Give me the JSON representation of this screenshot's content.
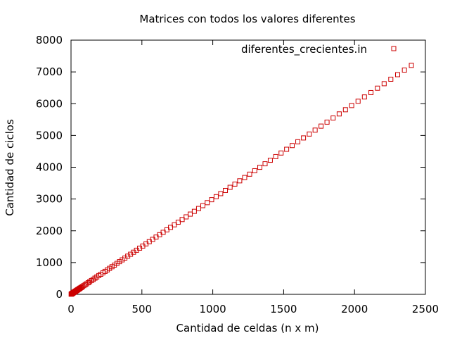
{
  "chart_data": {
    "type": "scatter",
    "title": "Matrices con todos los valores diferentes",
    "xlabel": "Cantidad de celdas (n x m)",
    "ylabel": "Cantidad de ciclos",
    "xlim": [
      0,
      2500
    ],
    "ylim": [
      0,
      8000
    ],
    "xticks": [
      "0",
      "500",
      "1000",
      "1500",
      "2000",
      "2500"
    ],
    "yticks": [
      "0",
      "1000",
      "2000",
      "3000",
      "4000",
      "5000",
      "6000",
      "7000",
      "8000"
    ],
    "grid": false,
    "legend_position": "top-right",
    "marker": "open-square",
    "color": "#cc0000",
    "series": [
      {
        "name": "diferentes_crecientes.in",
        "x": [
          1,
          2,
          3,
          4,
          5,
          6,
          7,
          8,
          9,
          10,
          11,
          12,
          13,
          14,
          15,
          16,
          18,
          20,
          22,
          24,
          25,
          28,
          30,
          32,
          35,
          36,
          40,
          42,
          45,
          48,
          49,
          54,
          56,
          60,
          63,
          64,
          70,
          72,
          80,
          81,
          90,
          100,
          110,
          121,
          132,
          144,
          156,
          169,
          182,
          196,
          210,
          225,
          240,
          256,
          272,
          289,
          306,
          324,
          342,
          361,
          380,
          400,
          420,
          441,
          462,
          484,
          506,
          529,
          552,
          576,
          600,
          625,
          650,
          676,
          702,
          729,
          756,
          784,
          812,
          841,
          870,
          900,
          930,
          961,
          992,
          1024,
          1056,
          1089,
          1122,
          1156,
          1190,
          1225,
          1260,
          1296,
          1332,
          1369,
          1406,
          1444,
          1482,
          1521,
          1560,
          1600,
          1640,
          1681,
          1722,
          1764,
          1806,
          1849,
          1892,
          1936,
          1980,
          2025,
          2070,
          2116,
          2162,
          2209,
          2256,
          2304,
          2352,
          2401
        ],
        "y": [
          5,
          8,
          11,
          14,
          17,
          20,
          23,
          26,
          29,
          32,
          35,
          38,
          41,
          44,
          47,
          50,
          56,
          62,
          68,
          74,
          77,
          86,
          92,
          98,
          107,
          110,
          122,
          128,
          137,
          146,
          149,
          164,
          170,
          182,
          191,
          194,
          212,
          218,
          242,
          245,
          272,
          302,
          332,
          365,
          398,
          434,
          470,
          509,
          548,
          590,
          632,
          677,
          722,
          770,
          818,
          869,
          920,
          974,
          1028,
          1085,
          1142,
          1202,
          1262,
          1325,
          1388,
          1454,
          1520,
          1589,
          1658,
          1730,
          1802,
          1877,
          1952,
          2030,
          2108,
          2189,
          2270,
          2354,
          2438,
          2525,
          2612,
          2702,
          2792,
          2885,
          2978,
          3074,
          3170,
          3269,
          3368,
          3470,
          3572,
          3677,
          3782,
          3890,
          3998,
          4109,
          4220,
          4334,
          4448,
          4565,
          4682,
          4802,
          4922,
          5045,
          5168,
          5294,
          5420,
          5549,
          5678,
          5810,
          5942,
          6077,
          6212,
          6350,
          6488,
          6629,
          6770,
          6914,
          7058,
          7205
        ]
      }
    ]
  }
}
